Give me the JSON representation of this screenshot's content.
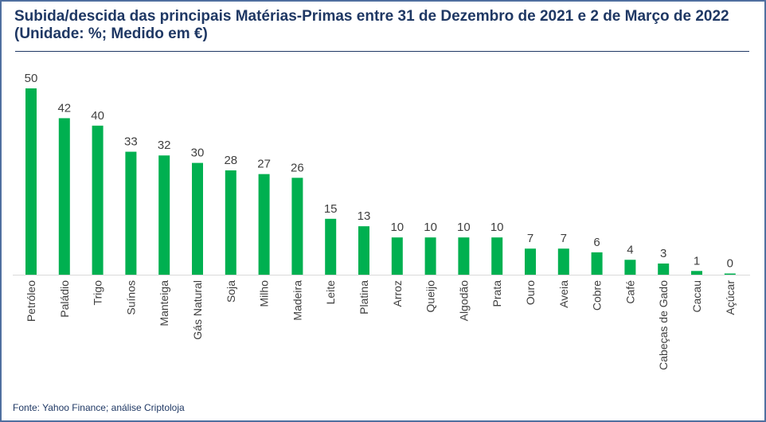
{
  "title": "Subida/descida das principais Matérias-Primas entre 31 de Dezembro de 2021 e 2 de Março de 2022 (Unidade: %; Medido em €)",
  "source": "Fonte: Yahoo Finance; análise Criptoloja",
  "chart_data": {
    "type": "bar",
    "title": "Subida/descida das principais Matérias-Primas entre 31 de Dezembro de 2021 e 2 de Março de 2022 (Unidade: %; Medido em €)",
    "xlabel": "",
    "ylabel": "",
    "ylim": [
      0,
      50
    ],
    "grid": false,
    "bar_color": "#00b050",
    "categories": [
      "Petróleo",
      "Paládio",
      "Trigo",
      "Suínos",
      "Manteiga",
      "Gás Natural",
      "Soja",
      "Milho",
      "Madeira",
      "Leite",
      "Platina",
      "Arroz",
      "Queijo",
      "Algodão",
      "Prata",
      "Ouro",
      "Aveia",
      "Cobre",
      "Café",
      "Cabeças de Gado",
      "Cacau",
      "Açúcar"
    ],
    "values": [
      50,
      42,
      40,
      33,
      32,
      30,
      28,
      27,
      26,
      15,
      13,
      10,
      10,
      10,
      10,
      7,
      7,
      6,
      4,
      3,
      1,
      0
    ]
  }
}
